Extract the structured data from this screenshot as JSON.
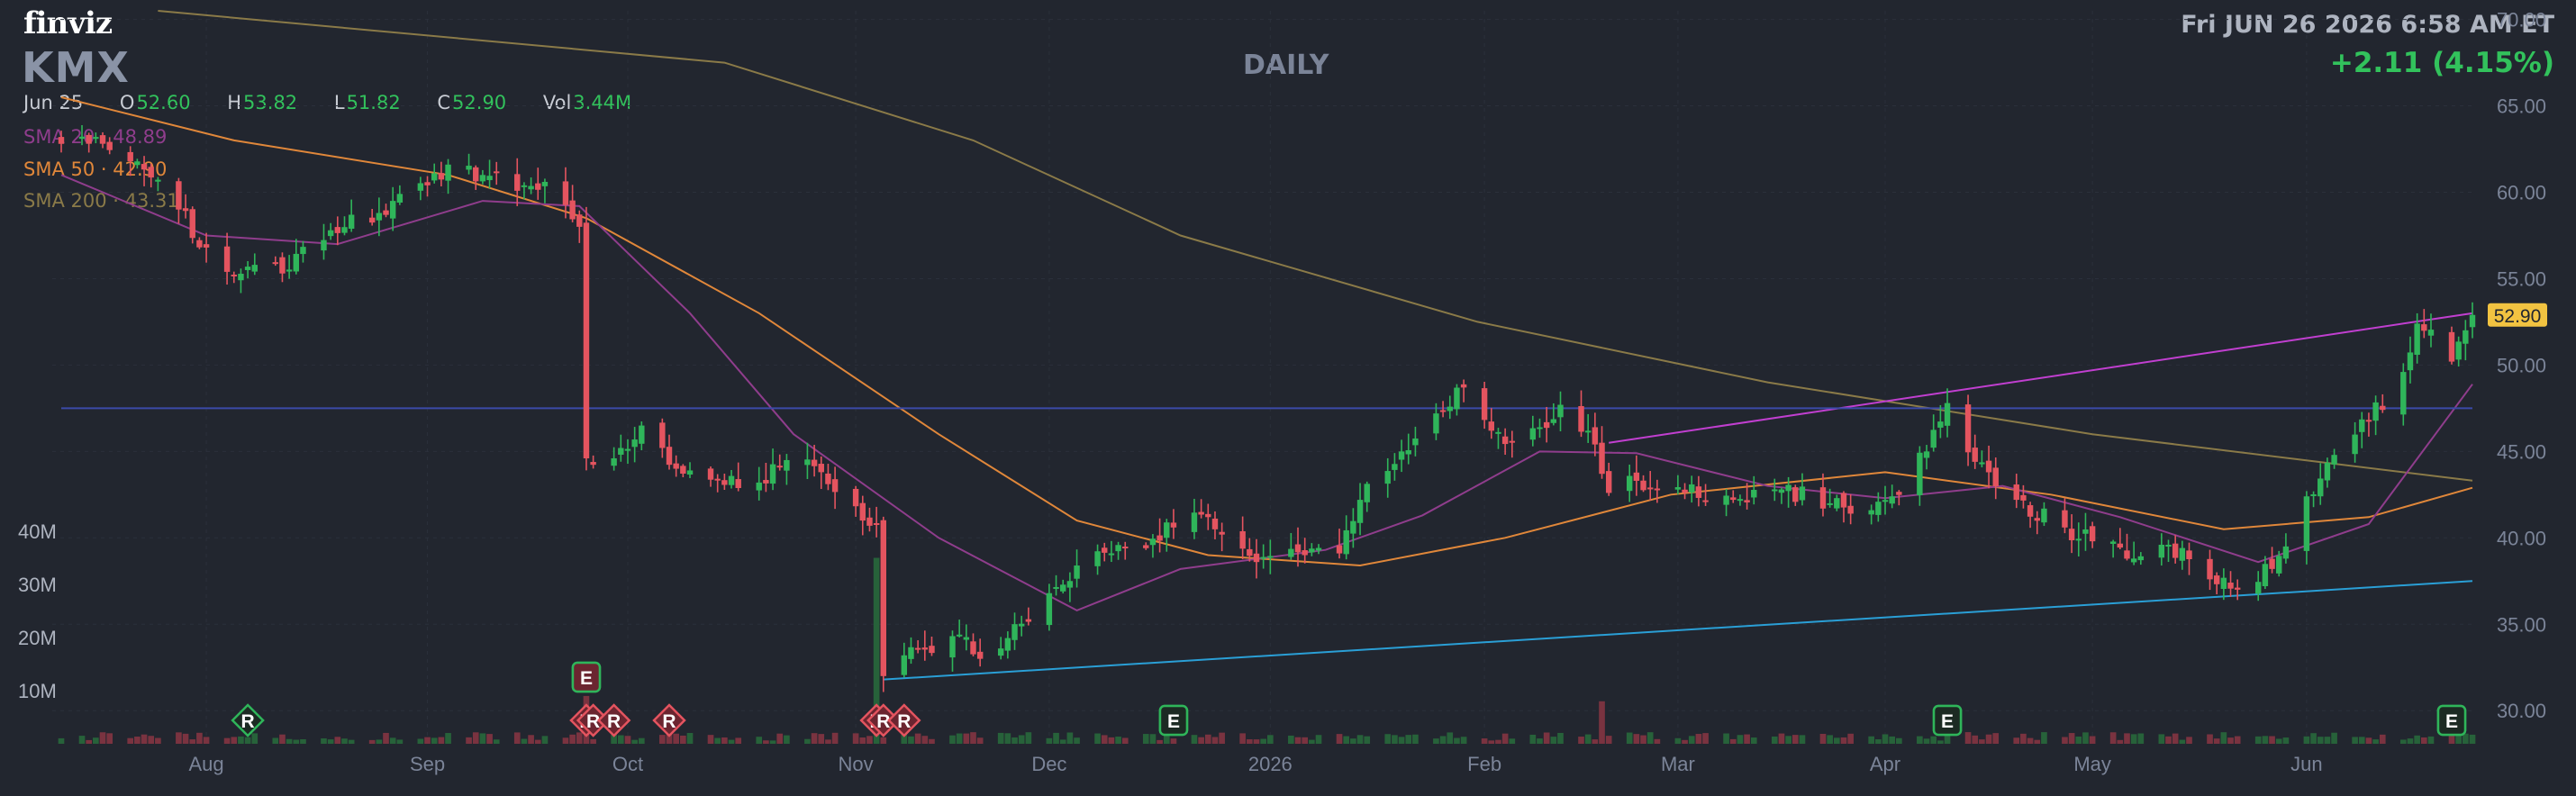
{
  "header": {
    "logo": "finviz",
    "ticker": "KMX",
    "timeframe": "DAILY",
    "datetime": "Fri JUN 26 2026 6:58 AM ET",
    "change": "+2.11 (4.15%)"
  },
  "ohlc": {
    "date": "Jun 25",
    "open_label": "O",
    "open": "52.60",
    "high_label": "H",
    "high": "53.82",
    "low_label": "L",
    "low": "51.82",
    "close_label": "C",
    "close": "52.90",
    "vol_label": "Vol",
    "vol": "3.44M"
  },
  "indicators": {
    "sma20": "SMA 20 · 48.89",
    "sma50": "SMA 50 · 42.90",
    "sma200": "SMA 200 · 43.31"
  },
  "colors": {
    "background": "#22262f",
    "up": "#2fb55a",
    "down": "#e4545f",
    "sma20": "#8f3d8c",
    "sma50": "#e0873a",
    "sma200": "#8a7a48",
    "trend_upper": "#c13fd0",
    "trend_lower": "#2a9fd6",
    "horizontal": "#3b4aa8",
    "last_price_tag": "#f2c341"
  },
  "chart_data": {
    "type": "candlestick",
    "symbol": "KMX",
    "y_axis": {
      "labels": [
        "70.00",
        "65.00",
        "60.00",
        "55.00",
        "50.00",
        "45.00",
        "40.00",
        "35.00",
        "30.00"
      ],
      "range": [
        28.5,
        70.5
      ]
    },
    "volume_axis": {
      "labels": [
        "40M",
        "30M",
        "20M",
        "10M"
      ]
    },
    "x_axis": {
      "labels": [
        "Aug",
        "Sep",
        "Oct",
        "Nov",
        "Dec",
        "2026",
        "Feb",
        "Mar",
        "Apr",
        "May",
        "Jun"
      ],
      "label_dates": [
        "2025-08-01",
        "2025-09-02",
        "2025-10-01",
        "2025-11-03",
        "2025-12-01",
        "2026-01-02",
        "2026-02-02",
        "2026-03-02",
        "2026-04-01",
        "2026-05-01",
        "2026-06-01"
      ],
      "start_date": "2025-07-11",
      "end_date": "2026-06-25"
    },
    "last_price": "52.90",
    "anchors": [
      [
        "2025-07-11",
        62.8
      ],
      [
        "2025-07-16",
        63.2
      ],
      [
        "2025-07-21",
        61.8
      ],
      [
        "2025-07-28",
        59.0
      ],
      [
        "2025-08-01",
        56.8
      ],
      [
        "2025-08-05",
        55.2
      ],
      [
        "2025-08-08",
        55.8
      ],
      [
        "2025-08-12",
        55.3
      ],
      [
        "2025-08-19",
        57.8
      ],
      [
        "2025-08-26",
        58.8
      ],
      [
        "2025-09-02",
        60.4
      ],
      [
        "2025-09-05",
        61.6
      ],
      [
        "2025-09-10",
        61.0
      ],
      [
        "2025-09-16",
        60.4
      ],
      [
        "2025-09-19",
        60.6
      ],
      [
        "2025-09-24",
        58.0
      ],
      [
        "2025-09-25",
        44.6
      ],
      [
        "2025-09-30",
        45.2
      ],
      [
        "2025-10-03",
        46.5
      ],
      [
        "2025-10-08",
        44.0
      ],
      [
        "2025-10-14",
        43.4
      ],
      [
        "2025-10-20",
        43.2
      ],
      [
        "2025-10-24",
        44.5
      ],
      [
        "2025-10-29",
        43.8
      ],
      [
        "2025-11-04",
        41.0
      ],
      [
        "2025-11-06",
        40.8
      ],
      [
        "2025-11-07",
        32.0
      ],
      [
        "2025-11-12",
        33.6
      ],
      [
        "2025-11-18",
        34.4
      ],
      [
        "2025-11-21",
        33.0
      ],
      [
        "2025-11-25",
        34.2
      ],
      [
        "2025-12-01",
        36.8
      ],
      [
        "2025-12-05",
        38.4
      ],
      [
        "2025-12-12",
        39.4
      ],
      [
        "2025-12-19",
        40.6
      ],
      [
        "2025-12-24",
        41.2
      ],
      [
        "2025-12-31",
        38.6
      ],
      [
        "2026-01-07",
        39.0
      ],
      [
        "2026-01-12",
        39.1
      ],
      [
        "2026-01-15",
        42.2
      ],
      [
        "2026-01-21",
        45.0
      ],
      [
        "2026-01-27",
        47.3
      ],
      [
        "2026-01-30",
        48.7
      ],
      [
        "2026-02-03",
        46.2
      ],
      [
        "2026-02-06",
        45.6
      ],
      [
        "2026-02-10",
        46.4
      ],
      [
        "2026-02-13",
        47.7
      ],
      [
        "2026-02-17",
        46.2
      ],
      [
        "2026-02-20",
        42.6
      ],
      [
        "2026-02-24",
        43.3
      ],
      [
        "2026-03-03",
        42.6
      ],
      [
        "2026-03-10",
        42.2
      ],
      [
        "2026-03-17",
        42.8
      ],
      [
        "2026-03-24",
        42.0
      ],
      [
        "2026-03-30",
        41.6
      ],
      [
        "2026-04-02",
        42.4
      ],
      [
        "2026-04-07",
        45.0
      ],
      [
        "2026-04-10",
        47.8
      ],
      [
        "2026-04-14",
        44.4
      ],
      [
        "2026-04-20",
        42.2
      ],
      [
        "2026-04-27",
        40.6
      ],
      [
        "2026-05-01",
        39.8
      ],
      [
        "2026-05-07",
        38.8
      ],
      [
        "2026-05-12",
        39.6
      ],
      [
        "2026-05-18",
        37.6
      ],
      [
        "2026-05-22",
        37.0
      ],
      [
        "2026-05-27",
        38.2
      ],
      [
        "2026-06-01",
        42.4
      ],
      [
        "2026-06-05",
        44.8
      ],
      [
        "2026-06-10",
        46.8
      ],
      [
        "2026-06-15",
        49.6
      ],
      [
        "2026-06-17",
        52.4
      ],
      [
        "2026-06-22",
        50.2
      ],
      [
        "2026-06-25",
        52.9
      ]
    ],
    "sma20": [
      [
        "2025-07-11",
        61.0
      ],
      [
        "2025-08-01",
        57.5
      ],
      [
        "2025-08-20",
        57.0
      ],
      [
        "2025-09-10",
        59.5
      ],
      [
        "2025-09-24",
        59.2
      ],
      [
        "2025-10-10",
        53.0
      ],
      [
        "2025-10-25",
        46.0
      ],
      [
        "2025-11-15",
        40.0
      ],
      [
        "2025-12-05",
        35.8
      ],
      [
        "2025-12-20",
        38.2
      ],
      [
        "2026-01-10",
        39.3
      ],
      [
        "2026-01-24",
        41.3
      ],
      [
        "2026-02-10",
        45.0
      ],
      [
        "2026-02-24",
        44.9
      ],
      [
        "2026-03-15",
        43.0
      ],
      [
        "2026-04-01",
        42.3
      ],
      [
        "2026-04-18",
        43.0
      ],
      [
        "2026-05-05",
        41.2
      ],
      [
        "2026-05-25",
        38.6
      ],
      [
        "2026-06-10",
        40.8
      ],
      [
        "2026-06-25",
        48.89
      ]
    ],
    "sma50": [
      [
        "2025-07-11",
        65.5
      ],
      [
        "2025-08-05",
        63.0
      ],
      [
        "2025-09-05",
        61.0
      ],
      [
        "2025-09-25",
        58.5
      ],
      [
        "2025-10-20",
        53.0
      ],
      [
        "2025-11-15",
        46.0
      ],
      [
        "2025-12-05",
        41.0
      ],
      [
        "2025-12-24",
        39.0
      ],
      [
        "2026-01-15",
        38.4
      ],
      [
        "2026-02-05",
        40.0
      ],
      [
        "2026-03-01",
        42.5
      ],
      [
        "2026-04-01",
        43.8
      ],
      [
        "2026-04-25",
        42.5
      ],
      [
        "2026-05-20",
        40.5
      ],
      [
        "2026-06-10",
        41.2
      ],
      [
        "2026-06-25",
        42.9
      ]
    ],
    "sma200": [
      [
        "2025-07-25",
        70.5
      ],
      [
        "2025-10-15",
        67.5
      ],
      [
        "2025-11-20",
        63.0
      ],
      [
        "2025-12-20",
        57.5
      ],
      [
        "2026-02-01",
        52.5
      ],
      [
        "2026-03-15",
        49.0
      ],
      [
        "2026-05-01",
        46.0
      ],
      [
        "2026-06-25",
        43.31
      ]
    ],
    "trendlines": [
      {
        "name": "upper",
        "from": [
          "2026-02-20",
          45.5
        ],
        "to": [
          "2026-06-25",
          53.0
        ]
      },
      {
        "name": "lower",
        "from": [
          "2025-11-07",
          31.8
        ],
        "to": [
          "2026-06-25",
          37.5
        ]
      },
      {
        "name": "horizontal",
        "from": [
          "2025-07-11",
          47.5
        ],
        "to": [
          "2026-06-25",
          47.5
        ]
      }
    ],
    "volume_spikes": [
      [
        "2025-09-25",
        9
      ],
      [
        "2025-11-06",
        35
      ],
      [
        "2025-12-18",
        7
      ],
      [
        "2026-02-19",
        8
      ],
      [
        "2026-04-10",
        6
      ],
      [
        "2026-06-22",
        7
      ]
    ],
    "events": [
      {
        "type": "R",
        "date": "2025-08-07"
      },
      {
        "type": "E",
        "date": "2025-09-25"
      },
      {
        "type": "R",
        "date": "2025-09-25"
      },
      {
        "type": "R",
        "date": "2025-09-26"
      },
      {
        "type": "R",
        "date": "2025-09-29"
      },
      {
        "type": "R",
        "date": "2025-10-07"
      },
      {
        "type": "R",
        "date": "2025-11-06"
      },
      {
        "type": "R",
        "date": "2025-11-07"
      },
      {
        "type": "R",
        "date": "2025-11-10"
      },
      {
        "type": "E",
        "date": "2025-12-19"
      },
      {
        "type": "E",
        "date": "2026-04-10"
      },
      {
        "type": "E",
        "date": "2026-06-22"
      }
    ]
  }
}
